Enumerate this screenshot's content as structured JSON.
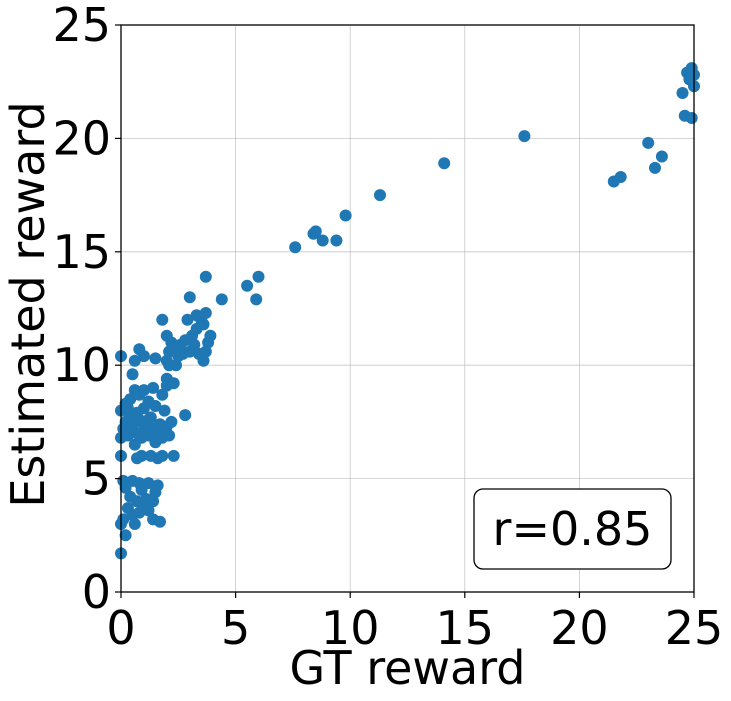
{
  "chart_data": {
    "type": "scatter",
    "title": "",
    "xlabel": "GT reward",
    "ylabel": "Estimated reward",
    "xlim": [
      0,
      25
    ],
    "ylim": [
      0,
      25
    ],
    "xticks": [
      "0",
      "5",
      "10",
      "15",
      "20",
      "25"
    ],
    "yticks": [
      "0",
      "5",
      "10",
      "15",
      "20",
      "25"
    ],
    "grid": true,
    "marker_color": "#1f77b4",
    "annotation": "r=0.85",
    "annotation_position": "bottom-right",
    "points": [
      [
        0.0,
        1.7
      ],
      [
        0.0,
        3.0
      ],
      [
        0.1,
        3.2
      ],
      [
        0.2,
        2.5
      ],
      [
        0.3,
        3.7
      ],
      [
        0.5,
        3.4
      ],
      [
        0.6,
        3.0
      ],
      [
        0.8,
        3.5
      ],
      [
        1.0,
        3.9
      ],
      [
        1.2,
        3.6
      ],
      [
        1.4,
        3.2
      ],
      [
        1.7,
        3.1
      ],
      [
        0.4,
        4.2
      ],
      [
        0.7,
        4.0
      ],
      [
        0.9,
        4.5
      ],
      [
        1.1,
        4.1
      ],
      [
        1.5,
        4.4
      ],
      [
        1.6,
        4.7
      ],
      [
        0.2,
        4.6
      ],
      [
        0.5,
        4.9
      ],
      [
        0.8,
        4.8
      ],
      [
        1.2,
        4.8
      ],
      [
        1.4,
        4.0
      ],
      [
        0.1,
        4.9
      ],
      [
        0.0,
        6.0
      ],
      [
        0.0,
        6.8
      ],
      [
        0.1,
        7.2
      ],
      [
        0.2,
        7.5
      ],
      [
        0.3,
        6.9
      ],
      [
        0.4,
        7.8
      ],
      [
        0.5,
        7.3
      ],
      [
        0.6,
        6.5
      ],
      [
        0.7,
        7.0
      ],
      [
        0.8,
        7.6
      ],
      [
        0.9,
        6.8
      ],
      [
        1.0,
        7.4
      ],
      [
        1.1,
        7.1
      ],
      [
        1.2,
        6.9
      ],
      [
        1.3,
        7.7
      ],
      [
        1.4,
        7.2
      ],
      [
        1.5,
        6.6
      ],
      [
        1.6,
        7.0
      ],
      [
        1.7,
        7.4
      ],
      [
        1.8,
        6.8
      ],
      [
        1.9,
        7.1
      ],
      [
        2.0,
        7.3
      ],
      [
        2.1,
        6.9
      ],
      [
        2.2,
        7.5
      ],
      [
        0.0,
        8.0
      ],
      [
        0.2,
        8.3
      ],
      [
        0.4,
        8.5
      ],
      [
        0.6,
        8.9
      ],
      [
        0.8,
        8.7
      ],
      [
        1.0,
        8.9
      ],
      [
        1.2,
        8.4
      ],
      [
        1.5,
        8.2
      ],
      [
        1.8,
        8.7
      ],
      [
        2.0,
        9.1
      ],
      [
        1.9,
        8.0
      ],
      [
        1.0,
        8.1
      ],
      [
        0.3,
        8.1
      ],
      [
        0.7,
        7.9
      ],
      [
        0.9,
        6.0
      ],
      [
        1.3,
        6.0
      ],
      [
        1.6,
        5.9
      ],
      [
        1.8,
        6.0
      ],
      [
        2.3,
        6.0
      ],
      [
        0.7,
        5.9
      ],
      [
        2.0,
        10.2
      ],
      [
        2.1,
        10.6
      ],
      [
        2.2,
        11.0
      ],
      [
        2.3,
        10.8
      ],
      [
        2.5,
        10.4
      ],
      [
        2.6,
        10.9
      ],
      [
        2.8,
        11.1
      ],
      [
        3.0,
        10.6
      ],
      [
        3.1,
        11.3
      ],
      [
        3.2,
        10.9
      ],
      [
        3.3,
        11.6
      ],
      [
        3.4,
        10.5
      ],
      [
        3.5,
        12.0
      ],
      [
        3.6,
        11.8
      ],
      [
        3.7,
        12.3
      ],
      [
        3.8,
        11.0
      ],
      [
        3.9,
        11.3
      ],
      [
        2.9,
        12.0
      ],
      [
        3.0,
        13.0
      ],
      [
        2.4,
        10.0
      ],
      [
        2.7,
        10.5
      ],
      [
        3.6,
        10.2
      ],
      [
        3.3,
        12.2
      ],
      [
        3.7,
        10.6
      ],
      [
        0.6,
        10.2
      ],
      [
        0.8,
        10.7
      ],
      [
        1.0,
        10.4
      ],
      [
        1.5,
        10.3
      ],
      [
        1.8,
        12.0
      ],
      [
        2.0,
        11.3
      ],
      [
        1.4,
        9.0
      ],
      [
        0.5,
        9.6
      ],
      [
        0.0,
        10.4
      ],
      [
        2.1,
        10.0
      ],
      [
        3.7,
        13.9
      ],
      [
        4.4,
        12.9
      ],
      [
        2.8,
        7.8
      ],
      [
        2.3,
        9.2
      ],
      [
        2.0,
        9.4
      ],
      [
        1.5,
        7.2
      ],
      [
        1.2,
        7.6
      ],
      [
        5.5,
        13.5
      ],
      [
        5.9,
        12.9
      ],
      [
        6.0,
        13.9
      ],
      [
        7.6,
        15.2
      ],
      [
        8.4,
        15.8
      ],
      [
        8.5,
        15.9
      ],
      [
        8.8,
        15.5
      ],
      [
        9.4,
        15.5
      ],
      [
        9.8,
        16.6
      ],
      [
        11.3,
        17.5
      ],
      [
        14.1,
        18.9
      ],
      [
        17.6,
        20.1
      ],
      [
        21.5,
        18.1
      ],
      [
        21.8,
        18.3
      ],
      [
        23.0,
        19.8
      ],
      [
        23.3,
        18.7
      ],
      [
        23.6,
        19.2
      ],
      [
        24.5,
        22.0
      ],
      [
        24.6,
        21.0
      ],
      [
        24.7,
        22.9
      ],
      [
        24.8,
        22.6
      ],
      [
        24.9,
        23.1
      ],
      [
        24.9,
        20.9
      ],
      [
        25.0,
        22.3
      ],
      [
        25.0,
        22.8
      ]
    ]
  }
}
